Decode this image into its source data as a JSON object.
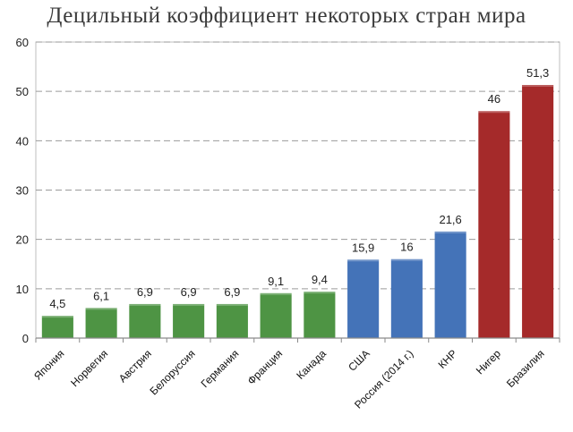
{
  "chart_data": {
    "type": "bar",
    "title": "Децильный коэффициент некоторых стран мира",
    "categories": [
      "Япония",
      "Норвегия",
      "Австрия",
      "Белоруссия",
      "Германия",
      "Франция",
      "Канада",
      "США",
      "Россия (2014 г.)",
      "КНР",
      "Нигер",
      "Бразилия"
    ],
    "values": [
      4.5,
      6.1,
      6.9,
      6.9,
      6.9,
      9.1,
      9.4,
      15.9,
      16,
      21.6,
      46,
      51.3
    ],
    "value_labels": [
      "4,5",
      "6,1",
      "6,9",
      "6,9",
      "6,9",
      "9,1",
      "9,4",
      "15,9",
      "16",
      "21,6",
      "46",
      "51,3"
    ],
    "bar_colors": [
      "#4e9444",
      "#4e9444",
      "#4e9444",
      "#4e9444",
      "#4e9444",
      "#4e9444",
      "#4e9444",
      "#4473b8",
      "#4473b8",
      "#4473b8",
      "#a52a2a",
      "#a52a2a"
    ],
    "ylim": [
      0,
      60
    ],
    "yticks": [
      0,
      10,
      20,
      30,
      40,
      50,
      60
    ],
    "grid": true,
    "xlabel": "",
    "ylabel": "",
    "legend": "none"
  }
}
